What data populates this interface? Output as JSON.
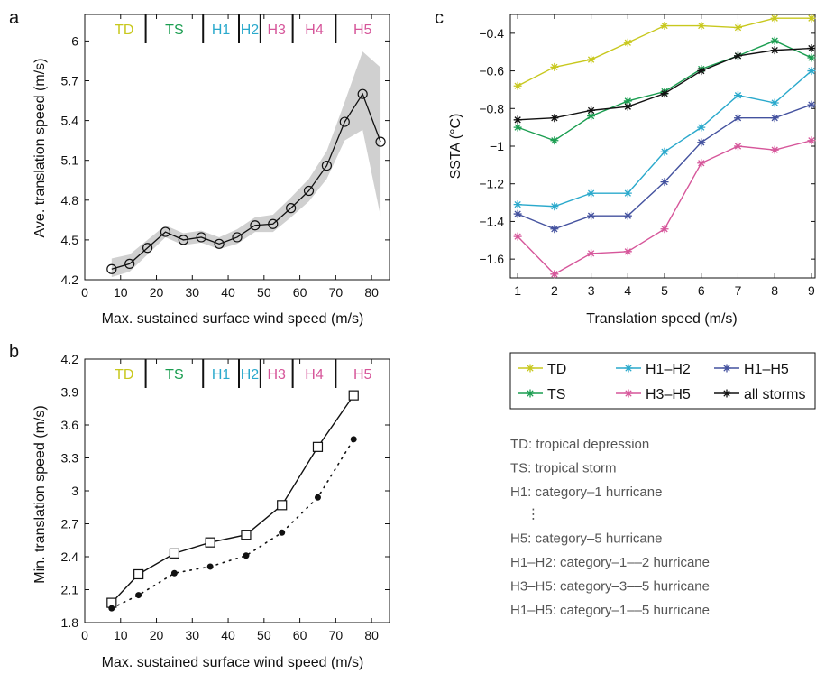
{
  "chart_data": [
    {
      "id": "a",
      "type": "line",
      "panel_label": "a",
      "xlabel": "Max. sustained surface wind speed (m/s)",
      "ylabel": "Ave. translation speed (m/s)",
      "xlim": [
        0,
        85
      ],
      "ylim": [
        4.2,
        6.2
      ],
      "xticks": [
        "0",
        "10",
        "20",
        "30",
        "40",
        "50",
        "60",
        "70",
        "80"
      ],
      "yticks": [
        "4.2",
        "4.5",
        "4.8",
        "5.1",
        "5.4",
        "5.7",
        "6"
      ],
      "categories": [
        {
          "label": "TD",
          "color": "#c8c81e",
          "from": 5,
          "to": 17
        },
        {
          "label": "TS",
          "color": "#1a9d50",
          "from": 17,
          "to": 33
        },
        {
          "label": "H1",
          "color": "#2aa9cc",
          "from": 33,
          "to": 43
        },
        {
          "label": "H2",
          "color": "#2aa9cc",
          "from": 43,
          "to": 49
        },
        {
          "label": "H3",
          "color": "#d6569a",
          "from": 49,
          "to": 58
        },
        {
          "label": "H4",
          "color": "#d6569a",
          "from": 58,
          "to": 70
        },
        {
          "label": "H5",
          "color": "#d6569a",
          "from": 70,
          "to": 85
        }
      ],
      "series": [
        {
          "x": [
            7.5,
            12.5,
            17.5,
            22.5,
            27.5,
            32.5,
            37.5,
            42.5,
            47.5,
            52.5,
            57.5,
            62.5,
            67.5,
            72.5,
            77.5,
            82.5
          ],
          "y": [
            4.28,
            4.32,
            4.44,
            4.56,
            4.5,
            4.52,
            4.47,
            4.52,
            4.61,
            4.62,
            4.74,
            4.87,
            5.06,
            5.39,
            5.6,
            5.24
          ],
          "lower": [
            4.22,
            4.26,
            4.39,
            4.52,
            4.46,
            4.48,
            4.43,
            4.47,
            4.56,
            4.56,
            4.67,
            4.79,
            4.96,
            5.25,
            5.33,
            4.68
          ],
          "upper": [
            4.36,
            4.39,
            4.5,
            4.61,
            4.55,
            4.57,
            4.52,
            4.58,
            4.67,
            4.69,
            4.82,
            4.96,
            5.17,
            5.54,
            5.92,
            5.8
          ],
          "marker": "circle"
        }
      ]
    },
    {
      "id": "b",
      "type": "line",
      "panel_label": "b",
      "xlabel": "Max. sustained surface wind speed (m/s)",
      "ylabel": "Min. translation speed (m/s)",
      "xlim": [
        0,
        85
      ],
      "ylim": [
        1.8,
        4.2
      ],
      "xticks": [
        "0",
        "10",
        "20",
        "30",
        "40",
        "50",
        "60",
        "70",
        "80"
      ],
      "yticks": [
        "1.8",
        "2.1",
        "2.4",
        "2.7",
        "3",
        "3.3",
        "3.6",
        "3.9",
        "4.2"
      ],
      "categories": [
        {
          "label": "TD",
          "color": "#c8c81e",
          "from": 5,
          "to": 17
        },
        {
          "label": "TS",
          "color": "#1a9d50",
          "from": 17,
          "to": 33
        },
        {
          "label": "H1",
          "color": "#2aa9cc",
          "from": 33,
          "to": 43
        },
        {
          "label": "H2",
          "color": "#2aa9cc",
          "from": 43,
          "to": 49
        },
        {
          "label": "H3",
          "color": "#d6569a",
          "from": 49,
          "to": 58
        },
        {
          "label": "H4",
          "color": "#d6569a",
          "from": 58,
          "to": 70
        },
        {
          "label": "H5",
          "color": "#d6569a",
          "from": 70,
          "to": 85
        }
      ],
      "series": [
        {
          "x": [
            7.5,
            15,
            25,
            35,
            45,
            55,
            65,
            75
          ],
          "y": [
            1.98,
            2.24,
            2.43,
            2.53,
            2.6,
            2.87,
            3.4,
            3.87
          ],
          "marker": "square",
          "style": "solid"
        },
        {
          "x": [
            7.5,
            15,
            25,
            35,
            45,
            55,
            65,
            75
          ],
          "y": [
            1.93,
            2.05,
            2.25,
            2.31,
            2.41,
            2.62,
            2.94,
            3.47
          ],
          "marker": "dot",
          "style": "dotted"
        }
      ]
    },
    {
      "id": "c",
      "type": "line",
      "panel_label": "c",
      "xlabel": "Translation speed (m/s)",
      "ylabel": "SSTA (°C)",
      "xlim": [
        0.8,
        9.1
      ],
      "ylim": [
        -1.7,
        -0.3
      ],
      "xticks": [
        "1",
        "2",
        "3",
        "4",
        "5",
        "6",
        "7",
        "8",
        "9"
      ],
      "yticks": [
        "-0.4",
        "-0.6",
        "-0.8",
        "-1",
        "-1.2",
        "-1.4",
        "-1.6"
      ],
      "x": [
        1,
        2,
        3,
        4,
        5,
        6,
        7,
        8,
        9
      ],
      "series": [
        {
          "name": "TD",
          "color": "#c8c81e",
          "values": [
            -0.68,
            -0.58,
            -0.54,
            -0.45,
            -0.36,
            -0.36,
            -0.37,
            -0.32,
            -0.32
          ]
        },
        {
          "name": "TS",
          "color": "#1a9d50",
          "values": [
            -0.9,
            -0.97,
            -0.84,
            -0.76,
            -0.71,
            -0.59,
            -0.52,
            -0.44,
            -0.53
          ]
        },
        {
          "name": "H1–H2",
          "color": "#2aa9cc",
          "values": [
            -1.31,
            -1.32,
            -1.25,
            -1.25,
            -1.03,
            -0.9,
            -0.73,
            -0.77,
            -0.6
          ]
        },
        {
          "name": "H3–H5",
          "color": "#d6569a",
          "values": [
            -1.48,
            -1.68,
            -1.57,
            -1.56,
            -1.44,
            -1.09,
            -1.0,
            -1.02,
            -0.97
          ]
        },
        {
          "name": "H1–H5",
          "color": "#44529f",
          "values": [
            -1.36,
            -1.44,
            -1.37,
            -1.37,
            -1.19,
            -0.98,
            -0.85,
            -0.85,
            -0.78
          ]
        },
        {
          "name": "all storms",
          "color": "#111111",
          "values": [
            -0.86,
            -0.85,
            -0.81,
            -0.79,
            -0.72,
            -0.6,
            -0.52,
            -0.49,
            -0.48
          ]
        }
      ],
      "legend": "below-right"
    }
  ],
  "notes": [
    "TD: tropical depression",
    "TS: tropical storm",
    "H1: category–1 hurricane",
    "⋮",
    "H5: category–5 hurricane",
    "H1–H2: category–1––2 hurricane",
    "H3–H5: category–3––5 hurricane",
    "H1–H5: category–1––5 hurricane"
  ]
}
